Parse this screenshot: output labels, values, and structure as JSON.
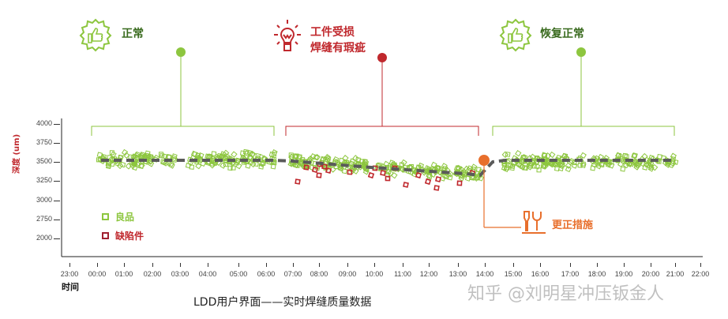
{
  "colors": {
    "good": "#8dc63f",
    "defect": "#c0282d",
    "normal_text": "#3a6b1f",
    "alert": "#c0282d",
    "corrective": "#e86f2c",
    "trend": "#5a5a5a",
    "axis": "#222222"
  },
  "annotations": [
    {
      "id": "normal",
      "icon": "thumbs-up-gear-icon",
      "lines": [
        "正常"
      ]
    },
    {
      "id": "damage",
      "icon": "lightbulb-icon",
      "lines": [
        "工件受损",
        "焊缝有瑕疵"
      ]
    },
    {
      "id": "recovered",
      "icon": "thumbs-up-gear-icon",
      "lines": [
        "恢复正常"
      ]
    },
    {
      "id": "corrective",
      "icon": "tools-icon",
      "lines": [
        "更正措施"
      ]
    }
  ],
  "legend": [
    {
      "label": "良品",
      "color": "#8dc63f"
    },
    {
      "label": "缺陷件",
      "color": "#c0282d"
    }
  ],
  "caption": "LDD用户界面——实时焊缝质量数据",
  "watermark": "知乎 @刘明星冲压钣金人",
  "chart_data": {
    "type": "scatter",
    "title": "LDD用户界面——实时焊缝质量数据",
    "xlabel": "时间",
    "ylabel": "深度 (um)",
    "x_ticks": [
      "23:00",
      "00:00",
      "01:00",
      "02:00",
      "03:00",
      "04:00",
      "05:00",
      "06:00",
      "07:00",
      "08:00",
      "09:00",
      "10:00",
      "11:00",
      "12:00",
      "13:00",
      "14:00",
      "15:00",
      "16:00",
      "17:00",
      "18:00",
      "19:00",
      "20:00",
      "21:00",
      "22:00"
    ],
    "y_ticks": [
      "4000",
      "3750",
      "3500",
      "3250",
      "3000",
      "2750",
      "2000"
    ],
    "grid": false,
    "legend_position": "lower-left inside",
    "phases": [
      {
        "label": "正常",
        "start": "00:00",
        "end": "06:30",
        "mean_depth": 3500
      },
      {
        "label": "工件受损 焊缝有瑕疵",
        "start": "07:00",
        "end": "14:00",
        "mean_depth_start": 3480,
        "mean_depth_end": 3320
      },
      {
        "label": "恢复正常",
        "start": "14:30",
        "end": "21:00",
        "mean_depth": 3500
      }
    ],
    "series": [
      {
        "name": "良品",
        "marker": "hollow-square",
        "color": "#8dc63f",
        "description": "dense cluster around 3350-3650 um"
      },
      {
        "name": "缺陷件",
        "marker": "hollow-square",
        "color": "#c0282d",
        "x_range": [
          "07:00",
          "13:30"
        ],
        "y_range": [
          3150,
          3420
        ]
      },
      {
        "name": "trend",
        "style": "dashed",
        "color": "#5a5a5a",
        "points": [
          [
            "00:00",
            3500
          ],
          [
            "06:30",
            3500
          ],
          [
            "07:00",
            3480
          ],
          [
            "10:00",
            3420
          ],
          [
            "13:30",
            3330
          ],
          [
            "14:00",
            3320
          ],
          [
            "14:30",
            3500
          ],
          [
            "21:00",
            3500
          ]
        ]
      }
    ],
    "events": [
      {
        "label": "更正措施",
        "x": "14:00",
        "y": 3520
      }
    ]
  }
}
